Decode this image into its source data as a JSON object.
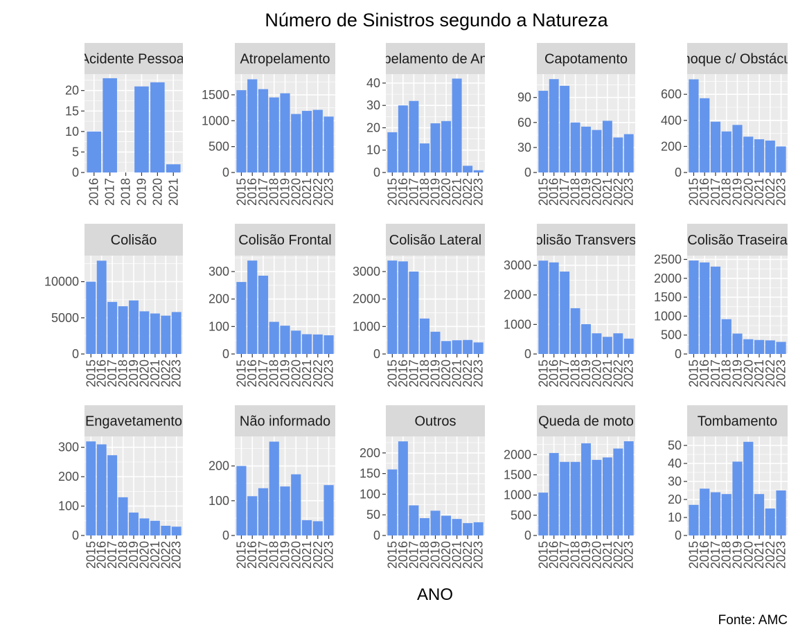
{
  "title": "Número de Sinistros segundo a Natureza",
  "xlabel": "ANO",
  "caption": "Fonte: AMC",
  "colors": {
    "bar": "#6495ED",
    "panel_background": "#EBEBEB",
    "grid": "#FFFFFF",
    "strip_background": "#D9D9D9",
    "axis_text": "#4D4D4D",
    "strip_text": "#1A1A1A"
  },
  "chart_data": [
    {
      "type": "bar",
      "facet": "Acidente Pessoal",
      "categories": [
        "2016",
        "2017",
        "2018",
        "2019",
        "2020",
        "2021"
      ],
      "values": [
        10,
        23,
        0,
        21,
        22,
        2
      ],
      "yticks": [
        0,
        5,
        10,
        15,
        20
      ],
      "ylim": [
        0,
        24
      ]
    },
    {
      "type": "bar",
      "facet": "Atropelamento",
      "categories": [
        "2015",
        "2016",
        "2017",
        "2018",
        "2019",
        "2020",
        "2021",
        "2022",
        "2023"
      ],
      "values": [
        1590,
        1800,
        1610,
        1450,
        1530,
        1130,
        1190,
        1210,
        1080
      ],
      "yticks": [
        0,
        500,
        1000,
        1500
      ],
      "ylim": [
        0,
        1900
      ]
    },
    {
      "type": "bar",
      "facet": "Atropelamento de Animal",
      "categories": [
        "2015",
        "2016",
        "2017",
        "2018",
        "2019",
        "2020",
        "2021",
        "2022",
        "2023"
      ],
      "values": [
        18,
        30,
        32,
        13,
        22,
        23,
        42,
        3,
        1
      ],
      "yticks": [
        0,
        10,
        20,
        30,
        40
      ],
      "ylim": [
        0,
        44
      ]
    },
    {
      "type": "bar",
      "facet": "Capotamento",
      "categories": [
        "2015",
        "2016",
        "2017",
        "2018",
        "2019",
        "2020",
        "2021",
        "2022",
        "2023"
      ],
      "values": [
        98,
        112,
        104,
        60,
        55,
        51,
        62,
        42,
        46
      ],
      "yticks": [
        0,
        30,
        60,
        90
      ],
      "ylim": [
        0,
        118
      ]
    },
    {
      "type": "bar",
      "facet": "Choque c/ Obstáculo",
      "categories": [
        "2015",
        "2016",
        "2017",
        "2018",
        "2019",
        "2020",
        "2021",
        "2022",
        "2023"
      ],
      "values": [
        715,
        570,
        390,
        315,
        365,
        275,
        255,
        245,
        200
      ],
      "yticks": [
        0,
        200,
        400,
        600
      ],
      "ylim": [
        0,
        755
      ]
    },
    {
      "type": "bar",
      "facet": "Colisão",
      "categories": [
        "2015",
        "2016",
        "2017",
        "2018",
        "2019",
        "2020",
        "2021",
        "2022",
        "2023"
      ],
      "values": [
        10000,
        12900,
        7200,
        6600,
        7400,
        5900,
        5600,
        5300,
        5800
      ],
      "yticks": [
        0,
        5000,
        10000
      ],
      "ylim": [
        0,
        13600
      ]
    },
    {
      "type": "bar",
      "facet": "Colisão Frontal",
      "categories": [
        "2015",
        "2016",
        "2017",
        "2018",
        "2019",
        "2020",
        "2021",
        "2022",
        "2023"
      ],
      "values": [
        262,
        340,
        285,
        117,
        103,
        85,
        72,
        71,
        68
      ],
      "yticks": [
        0,
        100,
        200,
        300
      ],
      "ylim": [
        0,
        358
      ]
    },
    {
      "type": "bar",
      "facet": "Colisão Lateral",
      "categories": [
        "2015",
        "2016",
        "2017",
        "2018",
        "2019",
        "2020",
        "2021",
        "2022",
        "2023"
      ],
      "values": [
        3400,
        3370,
        3000,
        1290,
        810,
        470,
        500,
        510,
        420
      ],
      "yticks": [
        0,
        1000,
        2000,
        3000
      ],
      "ylim": [
        0,
        3580
      ]
    },
    {
      "type": "bar",
      "facet": "Colisão Transversal",
      "categories": [
        "2015",
        "2016",
        "2017",
        "2018",
        "2019",
        "2020",
        "2021",
        "2022",
        "2023"
      ],
      "values": [
        3160,
        3100,
        2790,
        1550,
        1010,
        700,
        580,
        700,
        520
      ],
      "yticks": [
        0,
        1000,
        2000,
        3000
      ],
      "ylim": [
        0,
        3330
      ]
    },
    {
      "type": "bar",
      "facet": "Colisão Traseira",
      "categories": [
        "2015",
        "2016",
        "2017",
        "2018",
        "2019",
        "2020",
        "2021",
        "2022",
        "2023"
      ],
      "values": [
        2470,
        2420,
        2310,
        920,
        540,
        390,
        370,
        360,
        320
      ],
      "yticks": [
        0,
        500,
        1000,
        1500,
        2000,
        2500
      ],
      "ylim": [
        0,
        2600
      ]
    },
    {
      "type": "bar",
      "facet": "Engavetamento",
      "categories": [
        "2015",
        "2016",
        "2017",
        "2018",
        "2019",
        "2020",
        "2021",
        "2022",
        "2023"
      ],
      "values": [
        320,
        310,
        273,
        130,
        78,
        58,
        50,
        33,
        30
      ],
      "yticks": [
        0,
        100,
        200,
        300
      ],
      "ylim": [
        0,
        337
      ]
    },
    {
      "type": "bar",
      "facet": "Não informado",
      "categories": [
        "2015",
        "2016",
        "2017",
        "2018",
        "2019",
        "2020",
        "2021",
        "2022",
        "2023"
      ],
      "values": [
        200,
        113,
        136,
        270,
        141,
        176,
        44,
        41,
        145
      ],
      "yticks": [
        0,
        100,
        200
      ],
      "ylim": [
        0,
        285
      ]
    },
    {
      "type": "bar",
      "facet": "Outros",
      "categories": [
        "2015",
        "2016",
        "2017",
        "2018",
        "2019",
        "2020",
        "2021",
        "2022",
        "2023"
      ],
      "values": [
        160,
        228,
        73,
        42,
        60,
        48,
        40,
        30,
        32
      ],
      "yticks": [
        0,
        50,
        100,
        150,
        200
      ],
      "ylim": [
        0,
        240
      ]
    },
    {
      "type": "bar",
      "facet": "Queda de moto",
      "categories": [
        "2015",
        "2016",
        "2017",
        "2018",
        "2019",
        "2020",
        "2021",
        "2022",
        "2023"
      ],
      "values": [
        1060,
        2040,
        1820,
        1820,
        2280,
        1870,
        1930,
        2150,
        2330
      ],
      "yticks": [
        0,
        500,
        1000,
        1500,
        2000
      ],
      "ylim": [
        0,
        2450
      ]
    },
    {
      "type": "bar",
      "facet": "Tombamento",
      "categories": [
        "2015",
        "2016",
        "2017",
        "2018",
        "2019",
        "2020",
        "2021",
        "2022",
        "2023"
      ],
      "values": [
        17,
        26,
        24,
        23,
        41,
        52,
        23,
        15,
        25
      ],
      "yticks": [
        0,
        10,
        20,
        30,
        40,
        50
      ],
      "ylim": [
        0,
        55
      ]
    }
  ]
}
